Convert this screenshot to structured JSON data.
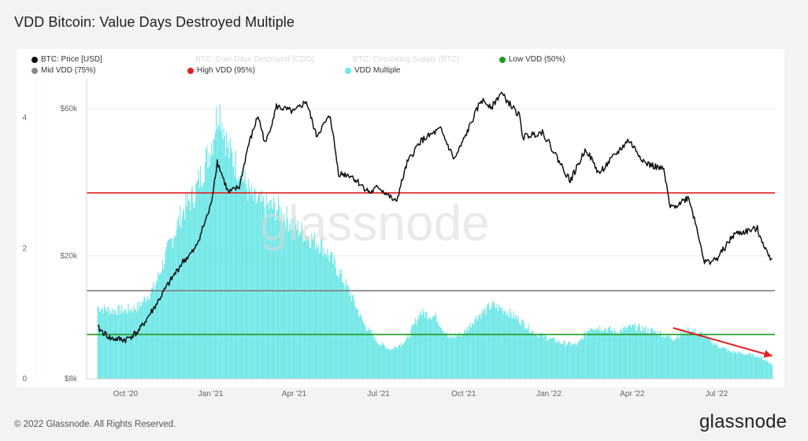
{
  "page": {
    "title": "VDD Bitcoin: Value Days Destroyed Multiple",
    "copyright": "© 2022 Glassnode. All Rights Reserved.",
    "brand_logo": "glassnode",
    "watermark": "glassnode"
  },
  "legend": [
    {
      "label": "BTC: Price [USD]",
      "color": "#111111",
      "muted": false
    },
    {
      "label": "BTC: Coin Days Destroyed (CDD)",
      "color": "#cccccc",
      "muted": true
    },
    {
      "label": "BTC: Circulating Supply (BTC)",
      "color": "#cccccc",
      "muted": true
    },
    {
      "label": "Low VDD (50%)",
      "color": "#1a9e1a",
      "muted": false
    },
    {
      "label": "Mid VDD (75%)",
      "color": "#888888",
      "muted": false
    },
    {
      "label": "High VDD (95%)",
      "color": "#e02020",
      "muted": false
    },
    {
      "label": "VDD Multiple",
      "color": "#70e8e8",
      "muted": false
    }
  ],
  "colors": {
    "price": "#111111",
    "vdd": "#6ce6e6",
    "low": "#1f9a1f",
    "mid": "#7f7f7f",
    "high": "#e02020",
    "arrow": "#e02020"
  },
  "chart_data": {
    "type": "bar",
    "title": "VDD Bitcoin: Value Days Destroyed Multiple",
    "x_ticks": [
      "Oct '20",
      "Jan '21",
      "Apr '21",
      "Jul '21",
      "Oct '21",
      "Jan '22",
      "Apr '22",
      "Jul '22"
    ],
    "left_axis": {
      "ticks": [
        "0",
        "2",
        "4"
      ],
      "range": [
        0,
        4.6
      ]
    },
    "right_axis": {
      "ticks": [
        "$8k",
        "$20k",
        "$60k"
      ],
      "scale": "log",
      "range": [
        8000,
        75000
      ]
    },
    "thresholds": [
      {
        "name": "Low VDD (50%)",
        "value": 0.68
      },
      {
        "name": "Mid VDD (75%)",
        "value": 1.35
      },
      {
        "name": "High VDD (95%)",
        "value": 2.85
      }
    ],
    "series": [
      {
        "name": "BTC: Price [USD]",
        "axis": "right",
        "points": [
          [
            "2020-09-01",
            11700
          ],
          [
            "2020-09-15",
            10800
          ],
          [
            "2020-10-01",
            10700
          ],
          [
            "2020-10-15",
            11400
          ],
          [
            "2020-11-01",
            13600
          ],
          [
            "2020-11-15",
            16000
          ],
          [
            "2020-12-01",
            19000
          ],
          [
            "2020-12-15",
            21000
          ],
          [
            "2021-01-01",
            29000
          ],
          [
            "2021-01-08",
            40500
          ],
          [
            "2021-01-20",
            32000
          ],
          [
            "2021-02-01",
            33500
          ],
          [
            "2021-02-10",
            45000
          ],
          [
            "2021-02-21",
            57000
          ],
          [
            "2021-03-01",
            46000
          ],
          [
            "2021-03-13",
            61000
          ],
          [
            "2021-04-01",
            58500
          ],
          [
            "2021-04-14",
            63500
          ],
          [
            "2021-04-25",
            49000
          ],
          [
            "2021-05-10",
            57000
          ],
          [
            "2021-05-19",
            37000
          ],
          [
            "2021-06-01",
            36500
          ],
          [
            "2021-06-22",
            32000
          ],
          [
            "2021-07-01",
            33500
          ],
          [
            "2021-07-20",
            29800
          ],
          [
            "2021-08-01",
            40000
          ],
          [
            "2021-08-15",
            47000
          ],
          [
            "2021-09-06",
            51500
          ],
          [
            "2021-09-21",
            41000
          ],
          [
            "2021-10-01",
            47500
          ],
          [
            "2021-10-20",
            64000
          ],
          [
            "2021-11-01",
            61000
          ],
          [
            "2021-11-10",
            67500
          ],
          [
            "2021-11-30",
            57000
          ],
          [
            "2021-12-04",
            48500
          ],
          [
            "2021-12-25",
            50500
          ],
          [
            "2022-01-01",
            46500
          ],
          [
            "2022-01-24",
            35000
          ],
          [
            "2022-02-10",
            44500
          ],
          [
            "2022-02-24",
            37000
          ],
          [
            "2022-03-28",
            47500
          ],
          [
            "2022-04-15",
            40000
          ],
          [
            "2022-05-05",
            38000
          ],
          [
            "2022-05-12",
            28500
          ],
          [
            "2022-06-01",
            31000
          ],
          [
            "2022-06-13",
            22500
          ],
          [
            "2022-06-18",
            19000
          ],
          [
            "2022-07-01",
            19500
          ],
          [
            "2022-07-20",
            23500
          ],
          [
            "2022-08-14",
            24500
          ],
          [
            "2022-08-26",
            20000
          ],
          [
            "2022-08-30",
            19800
          ]
        ]
      },
      {
        "name": "VDD Multiple",
        "axis": "left",
        "points": [
          [
            "2020-09-01",
            1.1
          ],
          [
            "2020-09-15",
            1.05
          ],
          [
            "2020-10-01",
            1.05
          ],
          [
            "2020-10-15",
            1.1
          ],
          [
            "2020-11-01",
            1.4
          ],
          [
            "2020-11-15",
            1.95
          ],
          [
            "2020-12-01",
            2.55
          ],
          [
            "2020-12-15",
            2.85
          ],
          [
            "2021-01-01",
            3.55
          ],
          [
            "2021-01-10",
            4.2
          ],
          [
            "2021-01-20",
            3.5
          ],
          [
            "2021-02-01",
            3.2
          ],
          [
            "2021-02-15",
            2.75
          ],
          [
            "2021-03-01",
            2.65
          ],
          [
            "2021-03-15",
            2.6
          ],
          [
            "2021-04-01",
            2.35
          ],
          [
            "2021-04-15",
            2.2
          ],
          [
            "2021-05-01",
            2.05
          ],
          [
            "2021-05-15",
            1.75
          ],
          [
            "2021-06-01",
            1.3
          ],
          [
            "2021-06-15",
            0.85
          ],
          [
            "2021-07-01",
            0.55
          ],
          [
            "2021-07-15",
            0.45
          ],
          [
            "2021-08-01",
            0.6
          ],
          [
            "2021-08-15",
            1.02
          ],
          [
            "2021-09-01",
            0.95
          ],
          [
            "2021-09-15",
            0.62
          ],
          [
            "2021-10-01",
            0.7
          ],
          [
            "2021-10-15",
            0.95
          ],
          [
            "2021-11-01",
            1.13
          ],
          [
            "2021-11-15",
            1.05
          ],
          [
            "2021-12-01",
            0.9
          ],
          [
            "2021-12-15",
            0.72
          ],
          [
            "2022-01-01",
            0.62
          ],
          [
            "2022-01-15",
            0.55
          ],
          [
            "2022-02-01",
            0.52
          ],
          [
            "2022-02-15",
            0.8
          ],
          [
            "2022-03-01",
            0.78
          ],
          [
            "2022-03-15",
            0.72
          ],
          [
            "2022-04-01",
            0.8
          ],
          [
            "2022-04-15",
            0.76
          ],
          [
            "2022-05-01",
            0.7
          ],
          [
            "2022-05-15",
            0.62
          ],
          [
            "2022-06-01",
            0.75
          ],
          [
            "2022-06-15",
            0.68
          ],
          [
            "2022-07-01",
            0.52
          ],
          [
            "2022-07-15",
            0.42
          ],
          [
            "2022-08-01",
            0.38
          ],
          [
            "2022-08-15",
            0.35
          ],
          [
            "2022-08-30",
            0.22
          ]
        ]
      }
    ],
    "annotation": {
      "type": "arrow",
      "from": [
        "2022-05-15",
        0.78
      ],
      "to": [
        "2022-08-30",
        0.35
      ]
    }
  }
}
